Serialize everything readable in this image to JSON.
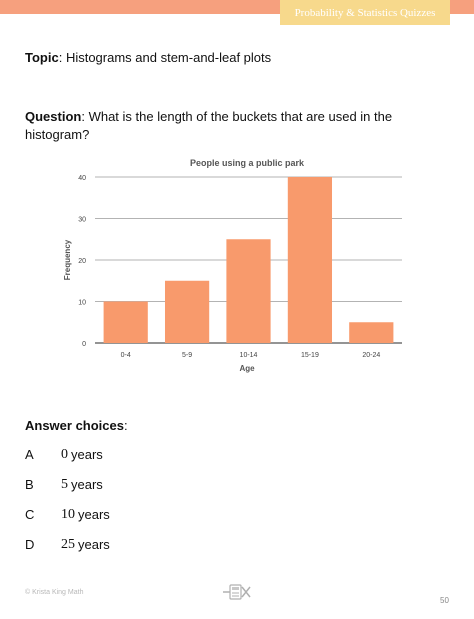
{
  "header": {
    "tab_title": "Probability & Statistics Quizzes"
  },
  "topic": {
    "label": "Topic",
    "text": "Histograms and stem-and-leaf plots"
  },
  "question": {
    "label": "Question",
    "text": "What is the length of the buckets that are used in the histogram?"
  },
  "chart_data": {
    "type": "bar",
    "title": "People using a public park",
    "xlabel": "Age",
    "ylabel": "Frequency",
    "categories": [
      "0-4",
      "5-9",
      "10-14",
      "15-19",
      "20-24"
    ],
    "values": [
      10,
      15,
      25,
      40,
      5
    ],
    "ylim": [
      0,
      40
    ],
    "yticks": [
      0,
      10,
      20,
      30,
      40
    ],
    "grid": true,
    "bar_color": "#f89a6c"
  },
  "answers": {
    "heading": "Answer choices",
    "choices": [
      {
        "letter": "A",
        "value": "0",
        "unit": "years"
      },
      {
        "letter": "B",
        "value": "5",
        "unit": "years"
      },
      {
        "letter": "C",
        "value": "10",
        "unit": "years"
      },
      {
        "letter": "D",
        "value": "25",
        "unit": "years"
      }
    ]
  },
  "footer": {
    "copyright": "© Krista King Math",
    "icon": "calculator-pencil-icon",
    "page_number": "50"
  },
  "colors": {
    "top_bar": "#f6a07e",
    "header_tab": "#f7d98c"
  }
}
